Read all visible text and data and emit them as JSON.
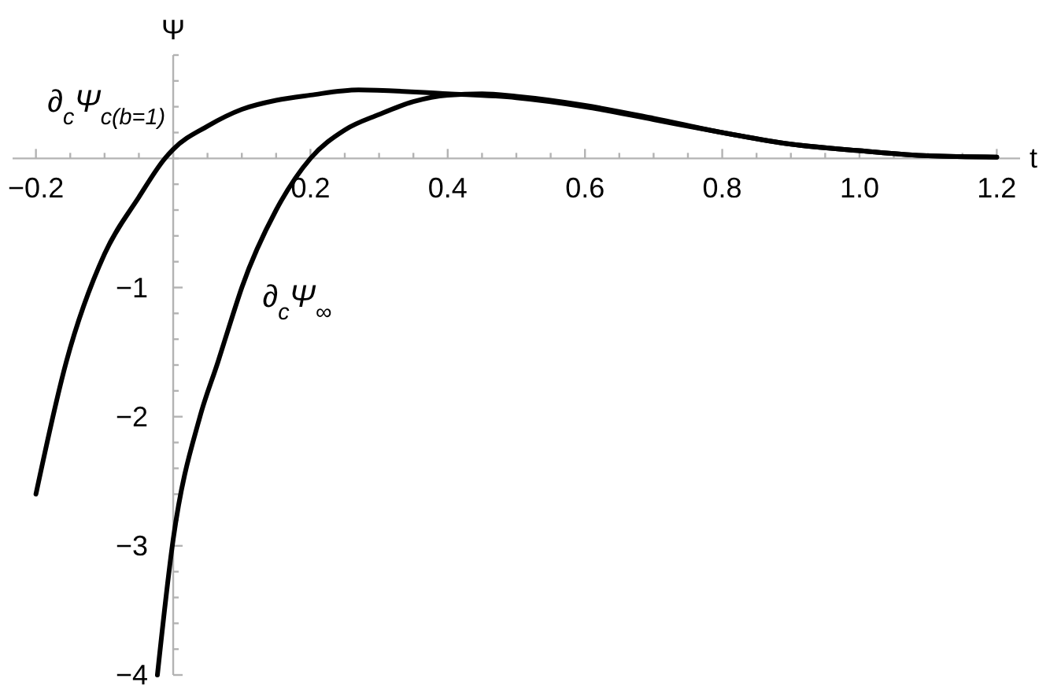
{
  "chart_data": {
    "type": "line",
    "xlabel": "t",
    "ylabel": "Ψ",
    "xlim": [
      -0.234,
      1.234
    ],
    "ylim": [
      -4,
      0.8
    ],
    "xticks": [
      -0.2,
      {
        "value": -0.15,
        "label": null
      },
      {
        "value": -0.1,
        "label": null
      },
      {
        "value": -0.05,
        "label": null
      },
      {
        "value": 0,
        "label": null
      },
      {
        "value": 0.05,
        "label": null
      },
      {
        "value": 0.1,
        "label": null
      },
      {
        "value": 0.15,
        "label": null
      },
      0.2,
      {
        "value": 0.25,
        "label": null
      },
      {
        "value": 0.3,
        "label": null
      },
      {
        "value": 0.35,
        "label": null
      },
      0.4,
      {
        "value": 0.45,
        "label": null
      },
      {
        "value": 0.5,
        "label": null
      },
      {
        "value": 0.55,
        "label": null
      },
      0.6,
      {
        "value": 0.65,
        "label": null
      },
      {
        "value": 0.7,
        "label": null
      },
      {
        "value": 0.75,
        "label": null
      },
      0.8,
      {
        "value": 0.85,
        "label": null
      },
      {
        "value": 0.9,
        "label": null
      },
      {
        "value": 0.95,
        "label": null
      },
      {
        "value": 1.0,
        "label": "1.0"
      },
      {
        "value": 1.05,
        "label": null
      },
      {
        "value": 1.1,
        "label": null
      },
      {
        "value": 1.15,
        "label": null
      },
      1.2
    ],
    "yticks": [
      -4,
      {
        "value": -3.8,
        "label": null
      },
      {
        "value": -3.6,
        "label": null
      },
      {
        "value": -3.4,
        "label": null
      },
      {
        "value": -3.2,
        "label": null
      },
      -3,
      {
        "value": -2.8,
        "label": null
      },
      {
        "value": -2.6,
        "label": null
      },
      {
        "value": -2.4,
        "label": null
      },
      {
        "value": -2.2,
        "label": null
      },
      -2,
      {
        "value": -1.8,
        "label": null
      },
      {
        "value": -1.6,
        "label": null
      },
      {
        "value": -1.4,
        "label": null
      },
      {
        "value": -1.2,
        "label": null
      },
      -1,
      {
        "value": -0.8,
        "label": null
      },
      {
        "value": -0.6,
        "label": null
      },
      {
        "value": -0.4,
        "label": null
      },
      {
        "value": -0.2,
        "label": null
      },
      {
        "value": 0,
        "label": null
      },
      {
        "value": 0.2,
        "label": null
      },
      {
        "value": 0.4,
        "label": null
      },
      {
        "value": 0.6,
        "label": null
      },
      {
        "value": 0.8,
        "label": null
      }
    ],
    "grid": false,
    "marker": "none",
    "line_style": "solid",
    "series": [
      {
        "name": "∂$_{c}$Ψ$_{c(b=1)}$",
        "color": "#000000",
        "x": [
          -0.2,
          -0.156,
          -0.1,
          -0.05,
          -0.012,
          0,
          0.05,
          0.1,
          0.15,
          0.2,
          0.27,
          0.4,
          0.5,
          0.6,
          0.7,
          0.8,
          0.9,
          1.0,
          1.1,
          1.2
        ],
        "values": [
          -2.6,
          -1.58,
          -0.74,
          -0.3,
          0,
          0.07,
          0.25,
          0.38,
          0.45,
          0.49,
          0.53,
          0.5,
          0.47,
          0.4,
          0.3,
          0.2,
          0.11,
          0.06,
          0.02,
          0.01
        ]
      },
      {
        "name": "∂$_{c}$Ψ$_{∞}$",
        "color": "#000000",
        "x": [
          -0.023,
          0,
          0.039,
          0.065,
          0.087,
          0.1,
          0.15,
          0.2,
          0.25,
          0.3,
          0.35,
          0.4,
          0.45,
          0.5,
          0.6,
          0.7,
          0.8,
          0.9,
          1.0,
          1.1,
          1.2
        ],
        "values": [
          -4,
          -2.95,
          -2,
          -1.58,
          -1.21,
          -1,
          -0.4,
          0,
          0.22,
          0.34,
          0.44,
          0.49,
          0.5,
          0.48,
          0.41,
          0.31,
          0.2,
          0.11,
          0.06,
          0.02,
          0.01
        ]
      }
    ]
  }
}
